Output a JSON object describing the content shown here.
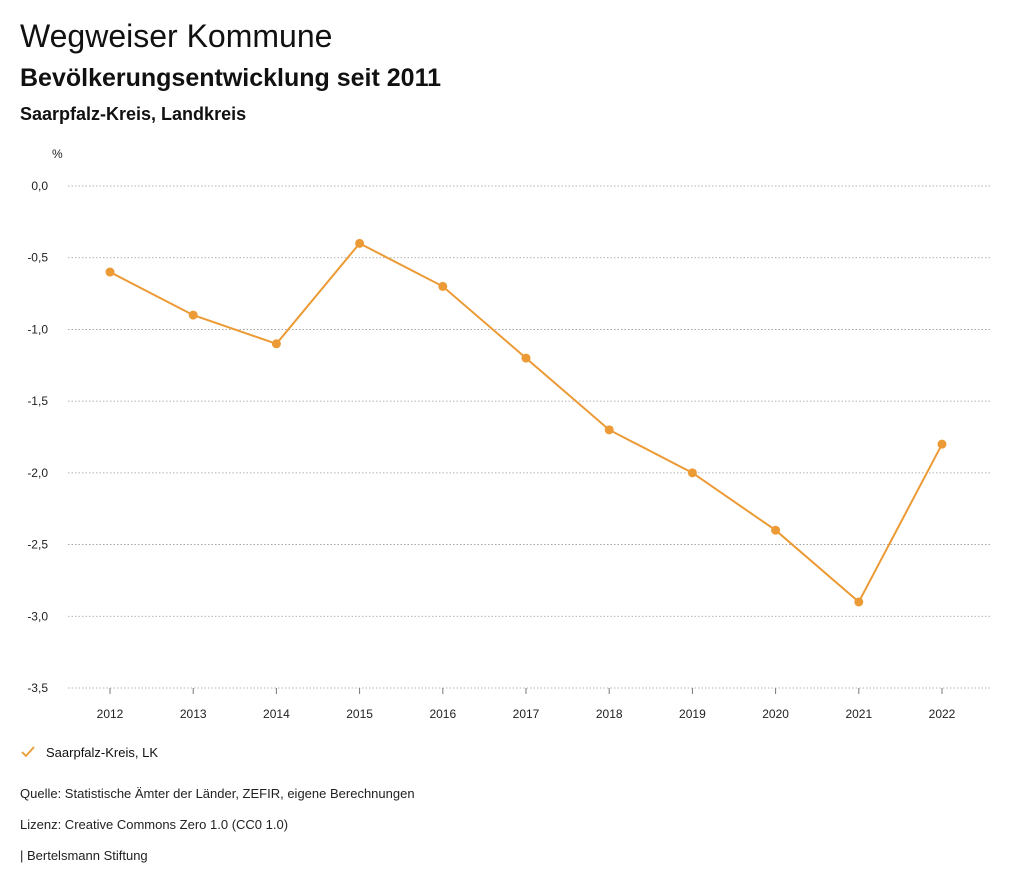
{
  "header": {
    "title": "Wegweiser Kommune",
    "subtitle": "Bevölkerungsentwicklung seit 2011",
    "region": "Saarpfalz-Kreis, Landkreis"
  },
  "chart_data": {
    "type": "line",
    "title": "Bevölkerungsentwicklung seit 2011",
    "xlabel": "",
    "ylabel": "%",
    "categories": [
      "2012",
      "2013",
      "2014",
      "2015",
      "2016",
      "2017",
      "2018",
      "2019",
      "2020",
      "2021",
      "2022"
    ],
    "series": [
      {
        "name": "Saarpfalz-Kreis, LK",
        "values": [
          -0.6,
          -0.9,
          -1.1,
          -0.4,
          -0.7,
          -1.2,
          -1.7,
          -2.0,
          -2.4,
          -2.9,
          -1.8
        ]
      }
    ],
    "ylim": [
      -3.5,
      0.0
    ],
    "yticks": [
      0.0,
      -0.5,
      -1.0,
      -1.5,
      -2.0,
      -2.5,
      -3.0,
      -3.5
    ],
    "ytick_labels": [
      "0,0",
      "-0,5",
      "-1,0",
      "-1,5",
      "-2,0",
      "-2,5",
      "-3,0",
      "-3,5"
    ],
    "grid": true,
    "legend_position": "bottom-left",
    "color": "#ec9a35"
  },
  "legend": {
    "label": "Saarpfalz-Kreis, LK"
  },
  "footer": {
    "source": "Quelle: Statistische Ämter der Länder, ZEFIR, eigene Berechnungen",
    "license": "Lizenz: Creative Commons Zero 1.0 (CC0 1.0)",
    "publisher": "| Bertelsmann Stiftung"
  }
}
